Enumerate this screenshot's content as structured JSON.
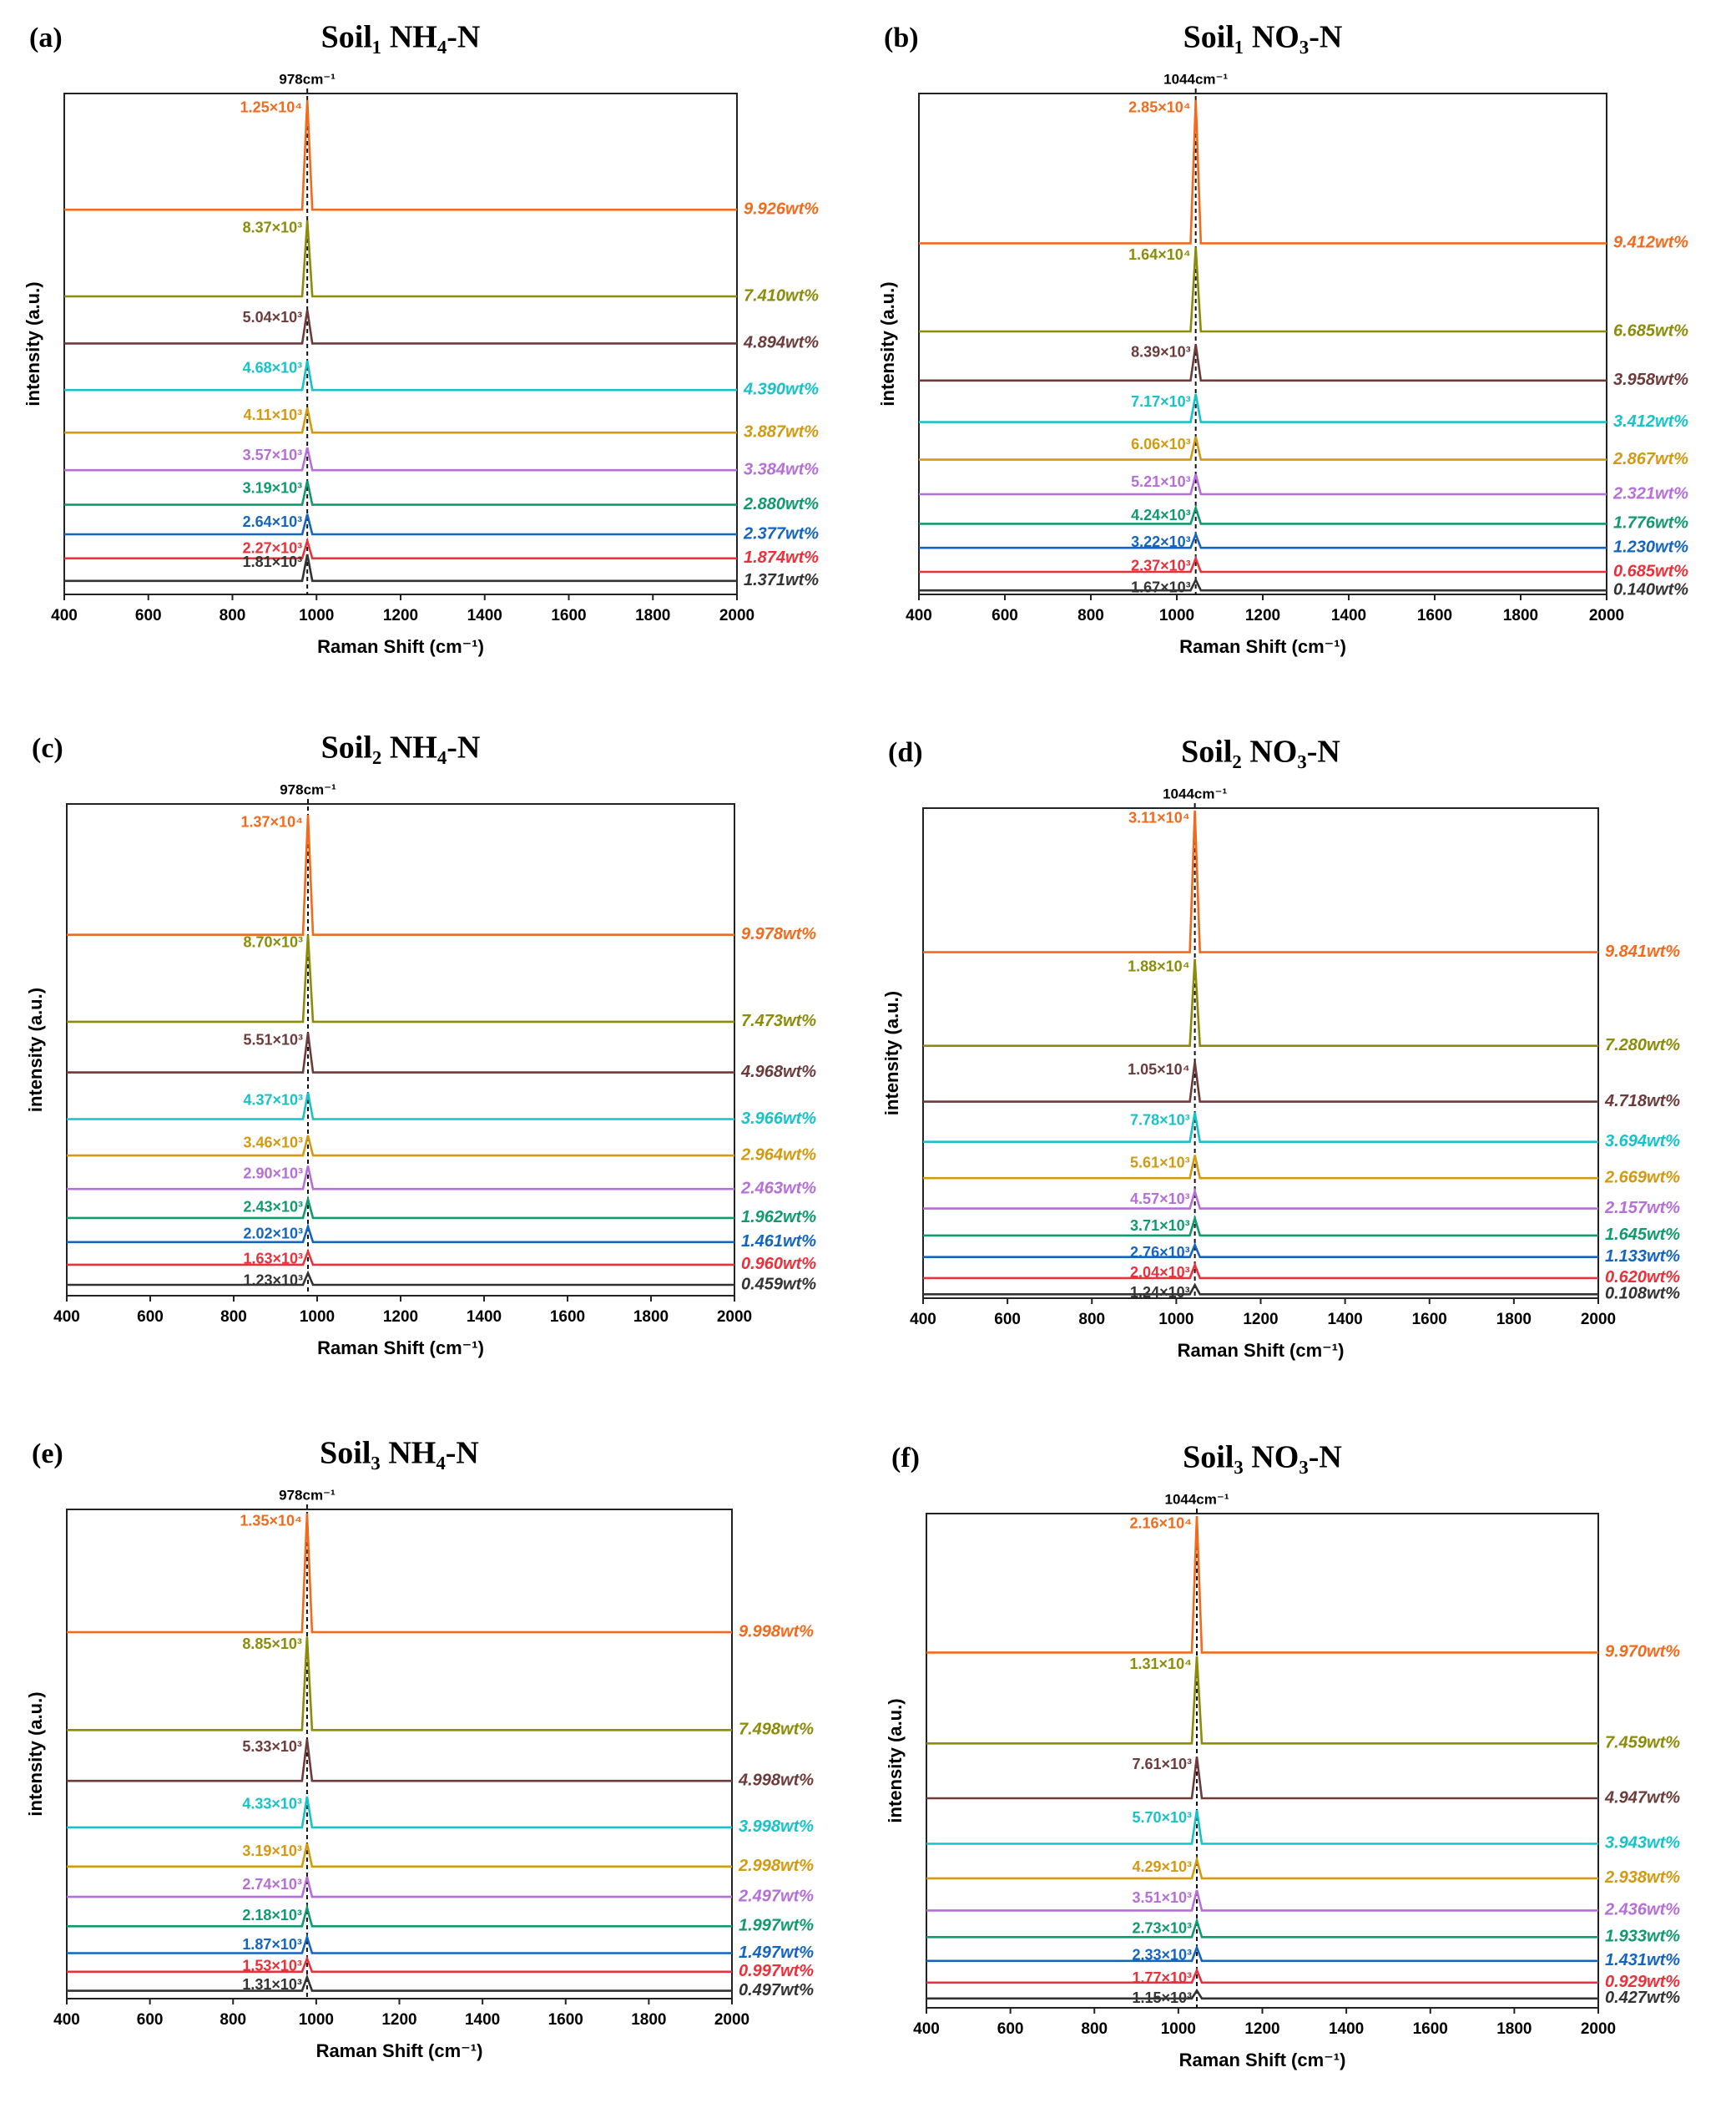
{
  "chart_data": [
    {
      "type": "line",
      "panel_label": "(a)",
      "title": "Soil₁ NH₄-N",
      "xlabel": "Raman Shift (cm⁻¹)",
      "ylabel": "intensity (a.u.)",
      "xlim": [
        400,
        2000
      ],
      "xticks": [
        400,
        600,
        800,
        1000,
        1200,
        1400,
        1600,
        1800,
        2000
      ],
      "ylim": [
        0,
        100
      ],
      "peak_line": {
        "value": 978,
        "label": "978cm⁻¹"
      },
      "x": [
        400,
        966,
        978,
        990,
        2000
      ],
      "series": [
        {
          "name": "9.926wt%",
          "color": "#f26b1d",
          "values": [
            76.8,
            76.8,
            98.7,
            76.8,
            76.8
          ],
          "peak": 12500,
          "peak_label": "1.25×10⁴"
        },
        {
          "name": "7.410wt%",
          "color": "#8c8c0a",
          "values": [
            59.5,
            59.5,
            74.7,
            59.5,
            59.5
          ],
          "peak": 8370,
          "peak_label": "8.37×10³"
        },
        {
          "name": "4.894wt%",
          "color": "#6e3b3b",
          "values": [
            50.1,
            50.1,
            56.8,
            50.1,
            50.1
          ],
          "peak": 5040,
          "peak_label": "5.04×10³"
        },
        {
          "name": "4.390wt%",
          "color": "#17c3c8",
          "values": [
            40.8,
            40.8,
            46.7,
            40.8,
            40.8
          ],
          "peak": 4680,
          "peak_label": "4.68×10³"
        },
        {
          "name": "3.887wt%",
          "color": "#d19a11",
          "values": [
            32.3,
            32.3,
            37.3,
            32.3,
            32.3
          ],
          "peak": 4110,
          "peak_label": "4.11×10³"
        },
        {
          "name": "3.384wt%",
          "color": "#b56fd6",
          "values": [
            24.8,
            24.8,
            29.3,
            24.8,
            24.8
          ],
          "peak": 3570,
          "peak_label": "3.57×10³"
        },
        {
          "name": "2.880wt%",
          "color": "#119a6b",
          "values": [
            17.9,
            17.9,
            22.7,
            17.9,
            17.9
          ],
          "peak": 3190,
          "peak_label": "3.19×10³"
        },
        {
          "name": "2.377wt%",
          "color": "#1565c0",
          "values": [
            12.0,
            12.0,
            16.0,
            12.0,
            12.0
          ],
          "peak": 2640,
          "peak_label": "2.64×10³"
        },
        {
          "name": "1.874wt%",
          "color": "#e8313a",
          "values": [
            7.2,
            7.2,
            10.7,
            7.2,
            7.2
          ],
          "peak": 2270,
          "peak_label": "2.27×10³"
        },
        {
          "name": "1.371wt%",
          "color": "#333333",
          "values": [
            2.7,
            2.7,
            8.0,
            2.7,
            2.7
          ],
          "peak": 1810,
          "peak_label": "1.81×10³"
        }
      ]
    },
    {
      "type": "line",
      "panel_label": "(b)",
      "title": "Soil₁ NO₃-N",
      "xlabel": "Raman Shift (cm⁻¹)",
      "ylabel": "intensity (a.u.)",
      "xlim": [
        400,
        2000
      ],
      "xticks": [
        400,
        600,
        800,
        1000,
        1200,
        1400,
        1600,
        1800,
        2000
      ],
      "ylim": [
        0,
        100
      ],
      "peak_line": {
        "value": 1044,
        "label": "1044cm⁻¹"
      },
      "x": [
        400,
        1032,
        1044,
        1056,
        2000
      ],
      "series": [
        {
          "name": "9.412wt%",
          "color": "#f26b1d",
          "values": [
            70.1,
            70.1,
            98.7,
            70.1,
            70.1
          ],
          "peak": 28500,
          "peak_label": "2.85×10⁴"
        },
        {
          "name": "6.685wt%",
          "color": "#8c8c0a",
          "values": [
            52.5,
            52.5,
            69.3,
            52.5,
            52.5
          ],
          "peak": 16400,
          "peak_label": "1.64×10⁴"
        },
        {
          "name": "3.958wt%",
          "color": "#6e3b3b",
          "values": [
            42.7,
            42.7,
            49.9,
            42.7,
            42.7
          ],
          "peak": 8390,
          "peak_label": "8.39×10³"
        },
        {
          "name": "3.412wt%",
          "color": "#17c3c8",
          "values": [
            34.4,
            34.4,
            40.0,
            34.4,
            34.4
          ],
          "peak": 7170,
          "peak_label": "7.17×10³"
        },
        {
          "name": "2.867wt%",
          "color": "#d19a11",
          "values": [
            26.9,
            26.9,
            31.5,
            26.9,
            26.9
          ],
          "peak": 6060,
          "peak_label": "6.06×10³"
        },
        {
          "name": "2.321wt%",
          "color": "#b56fd6",
          "values": [
            20.0,
            20.0,
            24.0,
            20.0,
            20.0
          ],
          "peak": 5210,
          "peak_label": "5.21×10³"
        },
        {
          "name": "1.776wt%",
          "color": "#119a6b",
          "values": [
            14.1,
            14.1,
            17.3,
            14.1,
            14.1
          ],
          "peak": 4240,
          "peak_label": "4.24×10³"
        },
        {
          "name": "1.230wt%",
          "color": "#1565c0",
          "values": [
            9.3,
            9.3,
            12.0,
            9.3,
            9.3
          ],
          "peak": 3220,
          "peak_label": "3.22×10³"
        },
        {
          "name": "0.685wt%",
          "color": "#e8313a",
          "values": [
            4.5,
            4.5,
            7.2,
            4.5,
            4.5
          ],
          "peak": 2370,
          "peak_label": "2.37×10³"
        },
        {
          "name": "0.140wt%",
          "color": "#333333",
          "values": [
            0.8,
            0.8,
            2.9,
            0.8,
            0.8
          ],
          "peak": 1670,
          "peak_label": "1.67×10³"
        }
      ]
    },
    {
      "type": "line",
      "panel_label": "(c)",
      "title": "Soil₂ NH₄-N",
      "xlabel": "Raman Shift (cm⁻¹)",
      "ylabel": "intensity (a.u.)",
      "xlim": [
        400,
        2000
      ],
      "xticks": [
        400,
        600,
        800,
        1000,
        1200,
        1400,
        1600,
        1800,
        2000
      ],
      "ylim": [
        0,
        100
      ],
      "peak_line": {
        "value": 978,
        "label": "978cm⁻¹"
      },
      "x": [
        400,
        966,
        978,
        990,
        2000
      ],
      "series": [
        {
          "name": "9.978wt%",
          "color": "#f26b1d",
          "values": [
            73.4,
            73.4,
            97.8,
            73.4,
            73.4
          ],
          "peak": 13700,
          "peak_label": "1.37×10⁴"
        },
        {
          "name": "7.473wt%",
          "color": "#8c8c0a",
          "values": [
            55.7,
            55.7,
            73.4,
            55.7,
            55.7
          ],
          "peak": 8700,
          "peak_label": "8.70×10³"
        },
        {
          "name": "4.968wt%",
          "color": "#6e3b3b",
          "values": [
            45.4,
            45.4,
            53.5,
            45.4,
            45.4
          ],
          "peak": 5510,
          "peak_label": "5.51×10³"
        },
        {
          "name": "3.966wt%",
          "color": "#17c3c8",
          "values": [
            35.9,
            35.9,
            41.3,
            35.9,
            35.9
          ],
          "peak": 4370,
          "peak_label": "4.37×10³"
        },
        {
          "name": "2.964wt%",
          "color": "#d19a11",
          "values": [
            28.5,
            28.5,
            32.6,
            28.5,
            28.5
          ],
          "peak": 3460,
          "peak_label": "3.46×10³"
        },
        {
          "name": "2.463wt%",
          "color": "#b56fd6",
          "values": [
            21.7,
            21.7,
            26.4,
            21.7,
            21.7
          ],
          "peak": 2900,
          "peak_label": "2.90×10³"
        },
        {
          "name": "1.962wt%",
          "color": "#119a6b",
          "values": [
            15.8,
            15.8,
            19.6,
            15.8,
            15.8
          ],
          "peak": 2430,
          "peak_label": "2.43×10³"
        },
        {
          "name": "1.461wt%",
          "color": "#1565c0",
          "values": [
            10.9,
            10.9,
            14.1,
            10.9,
            10.9
          ],
          "peak": 2020,
          "peak_label": "2.02×10³"
        },
        {
          "name": "0.960wt%",
          "color": "#e8313a",
          "values": [
            6.3,
            6.3,
            9.0,
            6.3,
            6.3
          ],
          "peak": 1630,
          "peak_label": "1.63×10³"
        },
        {
          "name": "0.459wt%",
          "color": "#333333",
          "values": [
            2.2,
            2.2,
            4.6,
            2.2,
            2.2
          ],
          "peak": 1230,
          "peak_label": "1.23×10³"
        }
      ]
    },
    {
      "type": "line",
      "panel_label": "(d)",
      "title": "Soil₂ NO₃-N",
      "xlabel": "Raman Shift (cm⁻¹)",
      "ylabel": "intensity (a.u.)",
      "xlim": [
        400,
        2000
      ],
      "xticks": [
        400,
        600,
        800,
        1000,
        1200,
        1400,
        1600,
        1800,
        2000
      ],
      "ylim": [
        0,
        100
      ],
      "peak_line": {
        "value": 1044,
        "label": "1044cm⁻¹"
      },
      "x": [
        400,
        1032,
        1044,
        1056,
        2000
      ],
      "series": [
        {
          "name": "9.841wt%",
          "color": "#f26b1d",
          "values": [
            70.6,
            70.6,
            99.5,
            70.6,
            70.6
          ],
          "peak": 31100,
          "peak_label": "3.11×10⁴"
        },
        {
          "name": "7.280wt%",
          "color": "#8c8c0a",
          "values": [
            51.5,
            51.5,
            69.2,
            51.5,
            51.5
          ],
          "peak": 18800,
          "peak_label": "1.88×10⁴"
        },
        {
          "name": "4.718wt%",
          "color": "#6e3b3b",
          "values": [
            40.1,
            40.1,
            48.2,
            40.1,
            40.1
          ],
          "peak": 10500,
          "peak_label": "1.05×10⁴"
        },
        {
          "name": "3.694wt%",
          "color": "#17c3c8",
          "values": [
            31.9,
            31.9,
            37.9,
            31.9,
            31.9
          ],
          "peak": 7780,
          "peak_label": "7.78×10³"
        },
        {
          "name": "2.669wt%",
          "color": "#d19a11",
          "values": [
            24.5,
            24.5,
            29.2,
            24.5,
            24.5
          ],
          "peak": 5610,
          "peak_label": "5.61×10³"
        },
        {
          "name": "2.157wt%",
          "color": "#b56fd6",
          "values": [
            18.3,
            18.3,
            21.8,
            18.3,
            18.3
          ],
          "peak": 4570,
          "peak_label": "4.57×10³"
        },
        {
          "name": "1.645wt%",
          "color": "#119a6b",
          "values": [
            12.8,
            12.8,
            16.3,
            12.8,
            12.8
          ],
          "peak": 3710,
          "peak_label": "3.71×10³"
        },
        {
          "name": "1.133wt%",
          "color": "#1565c0",
          "values": [
            8.4,
            8.4,
            10.9,
            8.4,
            8.4
          ],
          "peak": 2760,
          "peak_label": "2.76×10³"
        },
        {
          "name": "0.620wt%",
          "color": "#e8313a",
          "values": [
            4.1,
            4.1,
            6.8,
            4.1,
            4.1
          ],
          "peak": 2040,
          "peak_label": "2.04×10³"
        },
        {
          "name": "0.108wt%",
          "color": "#333333",
          "values": [
            0.8,
            0.8,
            2.7,
            0.8,
            0.8
          ],
          "peak": 1240,
          "peak_label": "1.24×10³"
        }
      ]
    },
    {
      "type": "line",
      "panel_label": "(e)",
      "title": "Soil₃ NH₄-N",
      "xlabel": "Raman Shift (cm⁻¹)",
      "ylabel": "intensity (a.u.)",
      "xlim": [
        400,
        2000
      ],
      "xticks": [
        400,
        600,
        800,
        1000,
        1200,
        1400,
        1600,
        1800,
        2000
      ],
      "ylim": [
        0,
        100
      ],
      "peak_line": {
        "value": 978,
        "label": "978cm⁻¹"
      },
      "x": [
        400,
        966,
        978,
        990,
        2000
      ],
      "series": [
        {
          "name": "9.998wt%",
          "color": "#f26b1d",
          "values": [
            74.9,
            74.9,
            99.2,
            74.9,
            74.9
          ],
          "peak": 13500,
          "peak_label": "1.35×10⁴"
        },
        {
          "name": "7.498wt%",
          "color": "#8c8c0a",
          "values": [
            54.9,
            54.9,
            74.0,
            54.9,
            54.9
          ],
          "peak": 8850,
          "peak_label": "8.85×10³"
        },
        {
          "name": "4.998wt%",
          "color": "#6e3b3b",
          "values": [
            44.5,
            44.5,
            53.0,
            44.5,
            44.5
          ],
          "peak": 5330,
          "peak_label": "5.33×10³"
        },
        {
          "name": "3.998wt%",
          "color": "#17c3c8",
          "values": [
            35.0,
            35.0,
            41.3,
            35.0,
            35.0
          ],
          "peak": 4330,
          "peak_label": "4.33×10³"
        },
        {
          "name": "2.998wt%",
          "color": "#d19a11",
          "values": [
            27.0,
            27.0,
            31.7,
            27.0,
            27.0
          ],
          "peak": 3190,
          "peak_label": "3.19×10³"
        },
        {
          "name": "2.497wt%",
          "color": "#b56fd6",
          "values": [
            20.8,
            20.8,
            24.9,
            20.8,
            20.8
          ],
          "peak": 2740,
          "peak_label": "2.74×10³"
        },
        {
          "name": "1.997wt%",
          "color": "#119a6b",
          "values": [
            14.8,
            14.8,
            18.6,
            14.8,
            14.8
          ],
          "peak": 2180,
          "peak_label": "2.18×10³"
        },
        {
          "name": "1.497wt%",
          "color": "#1565c0",
          "values": [
            9.3,
            9.3,
            12.6,
            9.3,
            9.3
          ],
          "peak": 1870,
          "peak_label": "1.87×10³"
        },
        {
          "name": "0.997wt%",
          "color": "#e8313a",
          "values": [
            5.5,
            5.5,
            8.2,
            5.5,
            5.5
          ],
          "peak": 1530,
          "peak_label": "1.53×10³"
        },
        {
          "name": "0.497wt%",
          "color": "#333333",
          "values": [
            1.6,
            1.6,
            4.4,
            1.6,
            1.6
          ],
          "peak": 1310,
          "peak_label": "1.31×10³"
        }
      ]
    },
    {
      "type": "line",
      "panel_label": "(f)",
      "title": "Soil₃ NO₃-N",
      "xlabel": "Raman Shift (cm⁻¹)",
      "ylabel": "intensity (a.u.)",
      "xlim": [
        400,
        2000
      ],
      "xticks": [
        400,
        600,
        800,
        1000,
        1200,
        1400,
        1600,
        1800,
        2000
      ],
      "ylim": [
        0,
        100
      ],
      "peak_line": {
        "value": 1044,
        "label": "1044cm⁻¹"
      },
      "x": [
        400,
        1032,
        1044,
        1056,
        2000
      ],
      "series": [
        {
          "name": "9.970wt%",
          "color": "#f26b1d",
          "values": [
            71.9,
            71.9,
            99.5,
            71.9,
            71.9
          ],
          "peak": 21600,
          "peak_label": "2.16×10⁴"
        },
        {
          "name": "7.459wt%",
          "color": "#8c8c0a",
          "values": [
            53.5,
            53.5,
            71.1,
            53.5,
            53.5
          ],
          "peak": 13100,
          "peak_label": "1.31×10⁴"
        },
        {
          "name": "4.947wt%",
          "color": "#6e3b3b",
          "values": [
            42.4,
            42.4,
            50.8,
            42.4,
            42.4
          ],
          "peak": 7610,
          "peak_label": "7.61×10³"
        },
        {
          "name": "3.943wt%",
          "color": "#17c3c8",
          "values": [
            33.2,
            33.2,
            40.0,
            33.2,
            33.2
          ],
          "peak": 5700,
          "peak_label": "5.70×10³"
        },
        {
          "name": "2.938wt%",
          "color": "#d19a11",
          "values": [
            26.2,
            26.2,
            30.0,
            26.2,
            26.2
          ],
          "peak": 4290,
          "peak_label": "4.29×10³"
        },
        {
          "name": "2.436wt%",
          "color": "#b56fd6",
          "values": [
            19.7,
            19.7,
            23.8,
            19.7,
            19.7
          ],
          "peak": 3510,
          "peak_label": "3.51×10³"
        },
        {
          "name": "1.933wt%",
          "color": "#119a6b",
          "values": [
            14.3,
            14.3,
            17.6,
            14.3,
            14.3
          ],
          "peak": 2730,
          "peak_label": "2.73×10³"
        },
        {
          "name": "1.431wt%",
          "color": "#1565c0",
          "values": [
            9.5,
            9.5,
            12.2,
            9.5,
            9.5
          ],
          "peak": 2330,
          "peak_label": "2.33×10³"
        },
        {
          "name": "0.929wt%",
          "color": "#e8313a",
          "values": [
            5.1,
            5.1,
            7.6,
            5.1,
            5.1
          ],
          "peak": 1770,
          "peak_label": "1.77×10³"
        },
        {
          "name": "0.427wt%",
          "color": "#333333",
          "values": [
            1.9,
            1.9,
            3.5,
            1.9,
            1.9
          ],
          "peak": 1150,
          "peak_label": "1.15×10³"
        }
      ]
    }
  ]
}
